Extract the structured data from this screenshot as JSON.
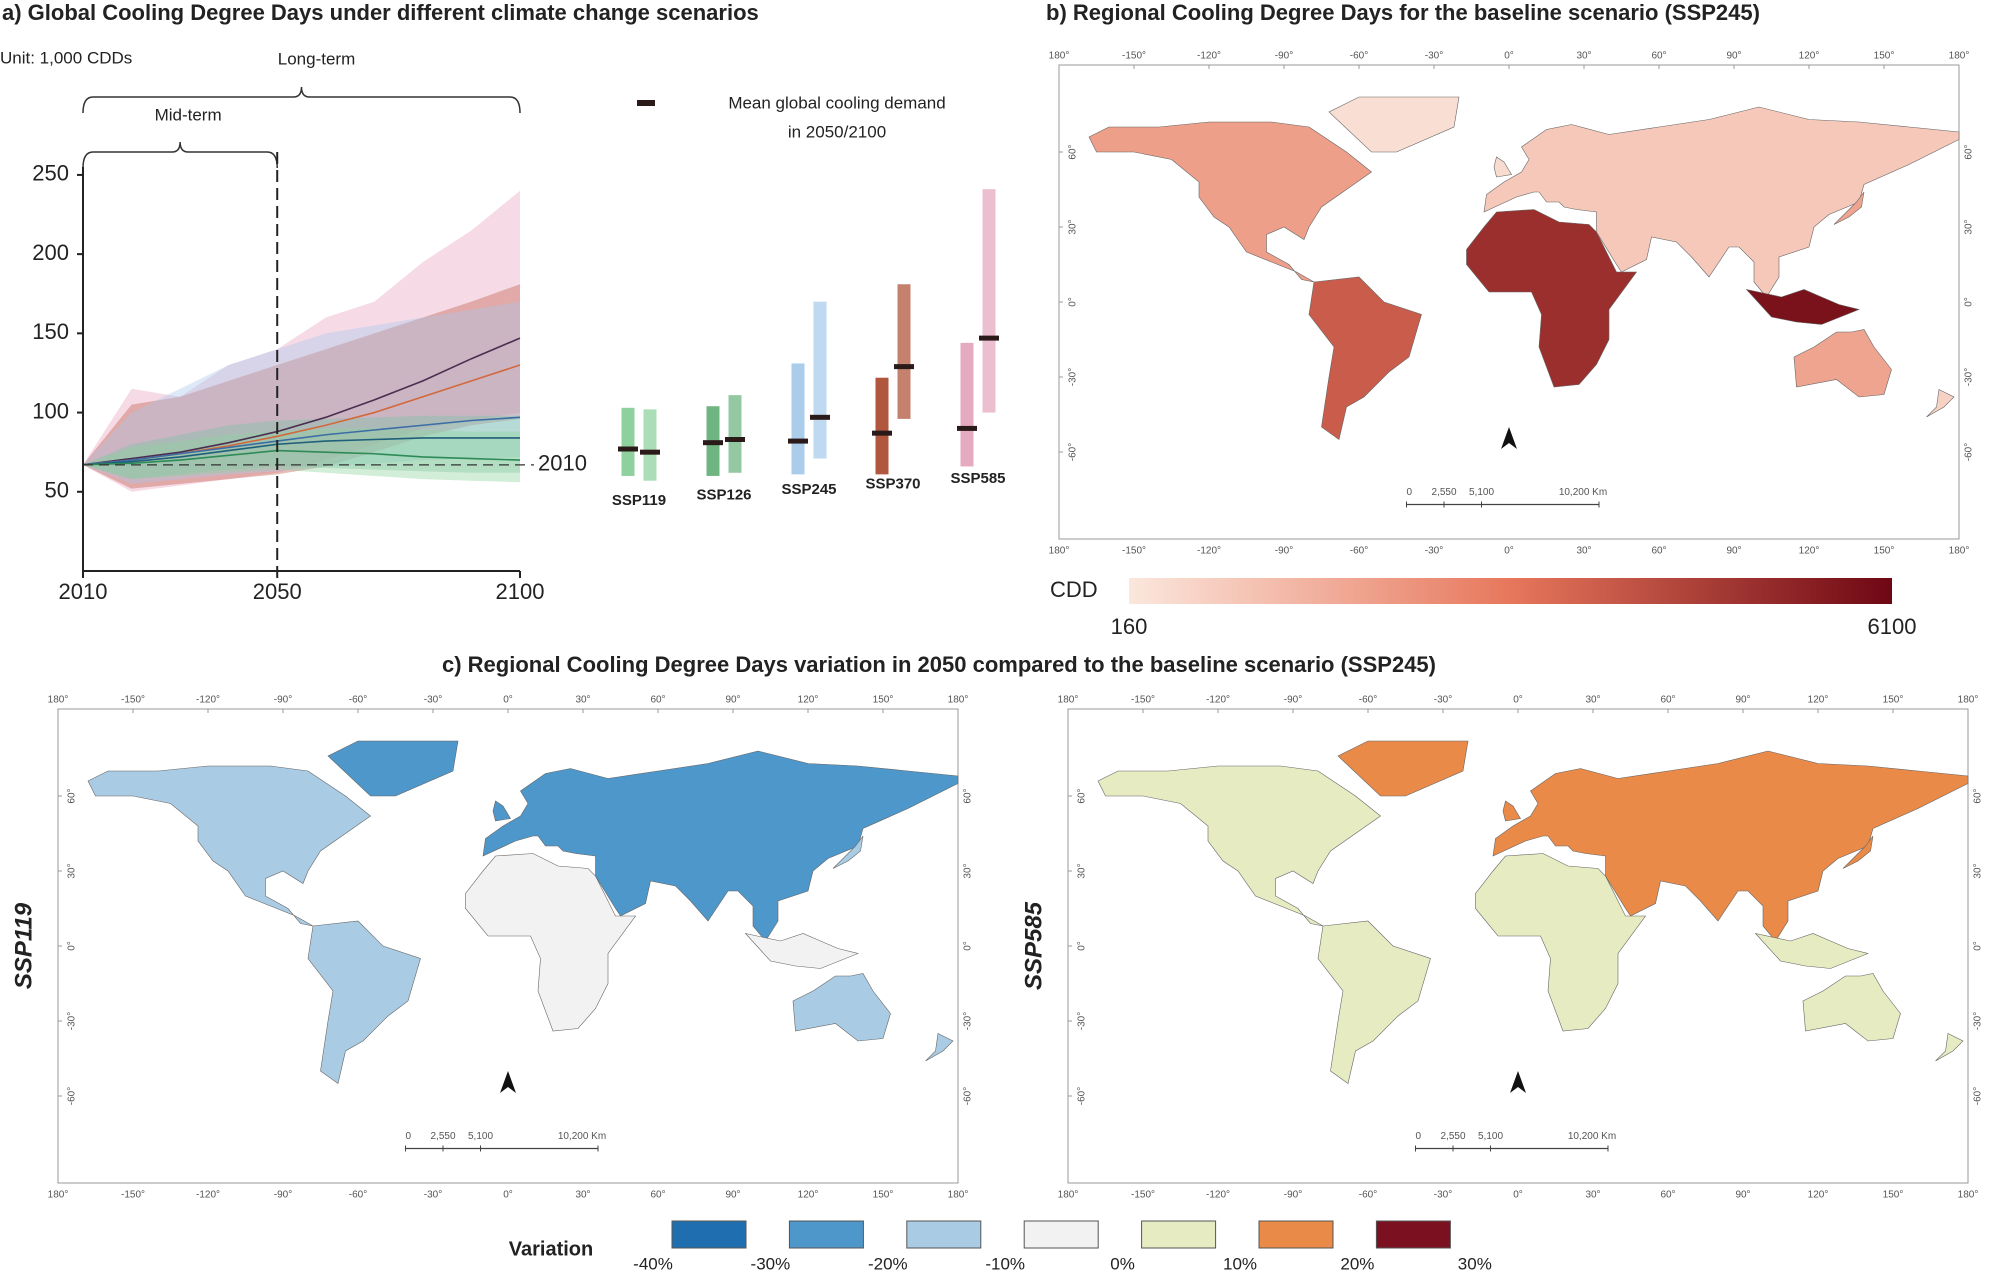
{
  "chart_data": [
    {
      "type": "line",
      "title": "a) Global Cooling Degree Days under different climate change scenarios",
      "unit": "Unit: 1,000 CDDs",
      "long_term": "Long-term",
      "mid_term": "Mid-term",
      "vline": 2050,
      "reference": {
        "value": 67,
        "label": "2010"
      },
      "x": [
        2010,
        2020,
        2030,
        2040,
        2050,
        2060,
        2070,
        2080,
        2090,
        2100
      ],
      "xlim": [
        2010,
        2100
      ],
      "xticks": [
        2010,
        2050,
        2100
      ],
      "ylim": [
        0,
        255
      ],
      "yticks": [
        50,
        100,
        150,
        200,
        250
      ],
      "series": [
        {
          "color": "#e8a6c2",
          "line_color": "#4b2e50",
          "values": [
            67,
            71,
            75,
            81,
            88,
            97,
            108,
            120,
            134,
            147
          ],
          "upper": [
            67,
            115,
            110,
            130,
            140,
            160,
            170,
            195,
            215,
            240
          ],
          "lower": [
            67,
            50,
            54,
            58,
            62,
            70,
            80,
            90,
            95,
            100
          ]
        },
        {
          "color": "#c2604a",
          "line_color": "#d2693c",
          "values": [
            67,
            70,
            74,
            79,
            85,
            92,
            100,
            110,
            120,
            130
          ],
          "upper": [
            67,
            105,
            110,
            120,
            130,
            140,
            150,
            160,
            170,
            181
          ],
          "lower": [
            67,
            52,
            55,
            58,
            61,
            66,
            75,
            85,
            92,
            96
          ]
        },
        {
          "color": "#aac9ea",
          "line_color": "#3a6ea5",
          "values": [
            67,
            70,
            74,
            78,
            82,
            86,
            89,
            92,
            95,
            97
          ],
          "upper": [
            67,
            100,
            115,
            130,
            140,
            150,
            155,
            160,
            165,
            170
          ],
          "lower": [
            67,
            55,
            58,
            61,
            63,
            66,
            68,
            70,
            71,
            72
          ]
        },
        {
          "color": "#7cc3a6",
          "line_color": "#1f5f7a",
          "values": [
            67,
            69,
            72,
            76,
            80,
            82,
            83,
            84,
            84,
            84
          ],
          "upper": [
            67,
            80,
            86,
            92,
            95,
            96,
            97,
            98,
            98,
            98
          ],
          "lower": [
            67,
            58,
            61,
            64,
            66,
            65,
            64,
            63,
            62,
            62
          ]
        },
        {
          "color": "#8fd19e",
          "line_color": "#2e8b57",
          "values": [
            67,
            68,
            70,
            73,
            76,
            75,
            74,
            72,
            71,
            70
          ],
          "upper": [
            67,
            78,
            82,
            86,
            88,
            90,
            90,
            89,
            88,
            88
          ],
          "lower": [
            67,
            58,
            60,
            62,
            64,
            62,
            60,
            58,
            57,
            56
          ]
        }
      ]
    },
    {
      "type": "range",
      "legend_label": [
        "Mean global cooling demand",
        "in 2050/2100"
      ],
      "legend_color": "#2b1a1a",
      "ylim": [
        0,
        255
      ],
      "categories": [
        "SSP119",
        "SSP126",
        "SSP245",
        "SSP370",
        "SSP585"
      ],
      "colors": [
        "#8fd19e",
        "#6fb581",
        "#a9cdeb",
        "#b0573d",
        "#e5a9c0"
      ],
      "series": [
        {
          "low": [
            60,
            60,
            61,
            61,
            66
          ],
          "high": [
            103,
            104,
            131,
            122,
            144
          ],
          "mean": [
            77,
            81,
            82,
            87,
            90
          ]
        },
        {
          "low": [
            57,
            62,
            71,
            96,
            100
          ],
          "high": [
            102,
            111,
            170,
            181,
            241
          ],
          "mean": [
            75,
            83,
            97,
            129,
            147
          ]
        }
      ]
    },
    {
      "type": "map",
      "title": "b) Regional Cooling Degree Days for the baseline scenario (SSP245)",
      "colorbar": {
        "label": "CDD",
        "ticks": [
          160,
          6100
        ],
        "colors": [
          "#fbe7dd",
          "#e7775c",
          "#6e0714"
        ]
      },
      "scale_bar": [
        "0",
        "2,550",
        "5,100",
        "10,200 Km"
      ]
    },
    {
      "type": "map",
      "title": "c) Regional Cooling Degree Days variation in 2050 compared to the baseline scenario (SSP245)",
      "row_label": "SSP119",
      "scale_bar": [
        "0",
        "2,550",
        "5,100",
        "10,200 Km"
      ],
      "legend": {
        "title": "Variation",
        "ticks": [
          {
            "value": -40,
            "label": "-40%"
          },
          {
            "value": -30,
            "label": "-30%"
          },
          {
            "value": -20,
            "label": "-20%"
          },
          {
            "value": -10,
            "label": "-10%"
          },
          {
            "value": 0,
            "label": "0%"
          },
          {
            "value": 10,
            "label": "10%"
          },
          {
            "value": 20,
            "label": "20%"
          },
          {
            "value": 30,
            "label": "30%"
          }
        ],
        "colors": [
          "#1f6fb0",
          "#4e97cb",
          "#a9cce4",
          "#f2f2f2",
          "#e6ebc2",
          "#e98a48",
          "#7b1020"
        ]
      }
    },
    {
      "type": "map",
      "row_label": "SSP585",
      "scale_bar": [
        "0",
        "2,550",
        "5,100",
        "10,200 Km"
      ]
    }
  ],
  "map_axes": {
    "lon_ticks": [
      {
        "value": -180,
        "label": "180°"
      },
      {
        "value": -150,
        "label": "-150°"
      },
      {
        "value": -120,
        "label": "-120°"
      },
      {
        "value": -90,
        "label": "-90°"
      },
      {
        "value": -60,
        "label": "-60°"
      },
      {
        "value": -30,
        "label": "-30°"
      },
      {
        "value": 0,
        "label": "0°"
      },
      {
        "value": 30,
        "label": "30°"
      },
      {
        "value": 60,
        "label": "60°"
      },
      {
        "value": 90,
        "label": "90°"
      },
      {
        "value": 120,
        "label": "120°"
      },
      {
        "value": 150,
        "label": "150°"
      },
      {
        "value": 180,
        "label": "180°"
      }
    ],
    "lat_ticks": [
      {
        "value": 60,
        "label": "60°"
      },
      {
        "value": 30,
        "label": "30°"
      },
      {
        "value": 0,
        "label": "0°"
      },
      {
        "value": -30,
        "label": "-30°"
      },
      {
        "value": -60,
        "label": "-60°"
      }
    ]
  }
}
